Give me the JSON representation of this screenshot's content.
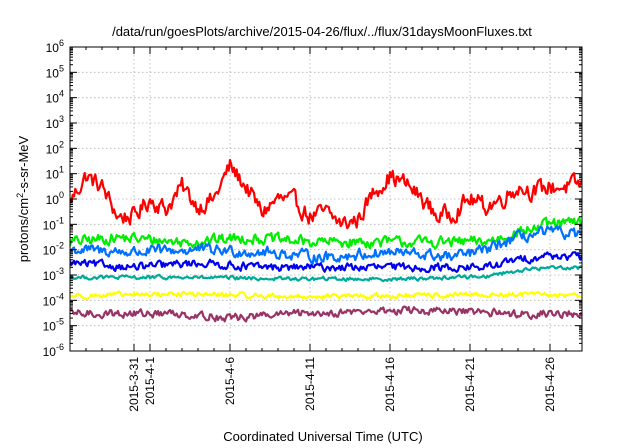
{
  "chart_data": {
    "type": "line",
    "title": "/data/run/goesPlots/archive/2015-04-26/flux/../flux/31daysMoonFluxes.txt",
    "xlabel": "Coordinated Universal Time (UTC)",
    "ylabel_parts": {
      "pre": "protons/cm",
      "sup": "2",
      "post": "-s-sr-MeV"
    },
    "yscale": "log",
    "ylim_exponents": [
      -6,
      6
    ],
    "y_tick_base": "10",
    "y_tick_exponents": [
      "-6",
      "-5",
      "-4",
      "-3",
      "-2",
      "-1",
      "0",
      "1",
      "2",
      "3",
      "4",
      "5",
      "6"
    ],
    "xlim": [
      "2015-03-27",
      "2015-04-28"
    ],
    "x_ticks": [
      {
        "date": "2015-03-31",
        "label": "2015-3-31"
      },
      {
        "date": "2015-04-01",
        "label": "2015-4-1"
      },
      {
        "date": "2015-04-06",
        "label": "2015-4-6"
      },
      {
        "date": "2015-04-11",
        "label": "2015-4-11"
      },
      {
        "date": "2015-04-16",
        "label": "2015-4-16"
      },
      {
        "date": "2015-04-21",
        "label": "2015-4-21"
      },
      {
        "date": "2015-04-26",
        "label": "2015-4-26"
      }
    ],
    "grid": true,
    "series": [
      {
        "color": "#ff0000",
        "points": [
          [
            "2015-03-27",
            0.8
          ],
          [
            "2015-03-28",
            8
          ],
          [
            "2015-03-29",
            3
          ],
          [
            "2015-03-30",
            0.2
          ],
          [
            "2015-03-31",
            0.2
          ],
          [
            "2015-04-01",
            1
          ],
          [
            "2015-04-02",
            0.4
          ],
          [
            "2015-04-03",
            3
          ],
          [
            "2015-04-04",
            0.5
          ],
          [
            "2015-04-05",
            1
          ],
          [
            "2015-04-06",
            20
          ],
          [
            "2015-04-07",
            3
          ],
          [
            "2015-04-08",
            0.3
          ],
          [
            "2015-04-09",
            1
          ],
          [
            "2015-04-10",
            0.8
          ],
          [
            "2015-04-11",
            0.2
          ],
          [
            "2015-04-12",
            0.3
          ],
          [
            "2015-04-13",
            0.1
          ],
          [
            "2015-04-14",
            0.15
          ],
          [
            "2015-04-15",
            2
          ],
          [
            "2015-04-16",
            8
          ],
          [
            "2015-04-17",
            4
          ],
          [
            "2015-04-18",
            1
          ],
          [
            "2015-04-19",
            0.2
          ],
          [
            "2015-04-20",
            0.3
          ],
          [
            "2015-04-21",
            1
          ],
          [
            "2015-04-22",
            0.5
          ],
          [
            "2015-04-23",
            1
          ],
          [
            "2015-04-24",
            3
          ],
          [
            "2015-04-25",
            2
          ],
          [
            "2015-04-26",
            3
          ],
          [
            "2015-04-27",
            3
          ],
          [
            "2015-04-28",
            4
          ]
        ]
      },
      {
        "color": "#00ee00",
        "points": [
          [
            "2015-03-27",
            0.02
          ],
          [
            "2015-03-30",
            0.03
          ],
          [
            "2015-04-03",
            0.02
          ],
          [
            "2015-04-07",
            0.03
          ],
          [
            "2015-04-11",
            0.02
          ],
          [
            "2015-04-15",
            0.02
          ],
          [
            "2015-04-19",
            0.02
          ],
          [
            "2015-04-22",
            0.02
          ],
          [
            "2015-04-24",
            0.05
          ],
          [
            "2015-04-26",
            0.1
          ],
          [
            "2015-04-28",
            0.12
          ]
        ]
      },
      {
        "color": "#0070ff",
        "points": [
          [
            "2015-03-27",
            0.01
          ],
          [
            "2015-03-31",
            0.008
          ],
          [
            "2015-04-04",
            0.01
          ],
          [
            "2015-04-08",
            0.008
          ],
          [
            "2015-04-12",
            0.005
          ],
          [
            "2015-04-16",
            0.008
          ],
          [
            "2015-04-20",
            0.005
          ],
          [
            "2015-04-22",
            0.01
          ],
          [
            "2015-04-24",
            0.03
          ],
          [
            "2015-04-26",
            0.05
          ],
          [
            "2015-04-28",
            0.04
          ]
        ]
      },
      {
        "color": "#0000ee",
        "points": [
          [
            "2015-03-27",
            0.003
          ],
          [
            "2015-03-31",
            0.002
          ],
          [
            "2015-04-04",
            0.003
          ],
          [
            "2015-04-08",
            0.002
          ],
          [
            "2015-04-12",
            0.002
          ],
          [
            "2015-04-16",
            0.002
          ],
          [
            "2015-04-20",
            0.002
          ],
          [
            "2015-04-22",
            0.002
          ],
          [
            "2015-04-24",
            0.004
          ],
          [
            "2015-04-26",
            0.006
          ],
          [
            "2015-04-28",
            0.005
          ]
        ]
      },
      {
        "color": "#00aa99",
        "points": [
          [
            "2015-03-27",
            0.0008
          ],
          [
            "2015-04-03",
            0.0008
          ],
          [
            "2015-04-10",
            0.0007
          ],
          [
            "2015-04-17",
            0.0007
          ],
          [
            "2015-04-22",
            0.0009
          ],
          [
            "2015-04-24",
            0.0015
          ],
          [
            "2015-04-26",
            0.002
          ],
          [
            "2015-04-28",
            0.002
          ]
        ]
      },
      {
        "color": "#ffff00",
        "points": [
          [
            "2015-03-27",
            0.00015
          ],
          [
            "2015-04-03",
            0.00018
          ],
          [
            "2015-04-10",
            0.00014
          ],
          [
            "2015-04-17",
            0.00015
          ],
          [
            "2015-04-24",
            0.00017
          ],
          [
            "2015-04-28",
            0.00016
          ]
        ]
      },
      {
        "color": "#993366",
        "points": [
          [
            "2015-03-27",
            3e-05
          ],
          [
            "2015-04-03",
            3e-05
          ],
          [
            "2015-04-06",
            2e-05
          ],
          [
            "2015-04-10",
            3e-05
          ],
          [
            "2015-04-17",
            4e-05
          ],
          [
            "2015-04-24",
            3e-05
          ],
          [
            "2015-04-28",
            3e-05
          ]
        ]
      }
    ]
  }
}
